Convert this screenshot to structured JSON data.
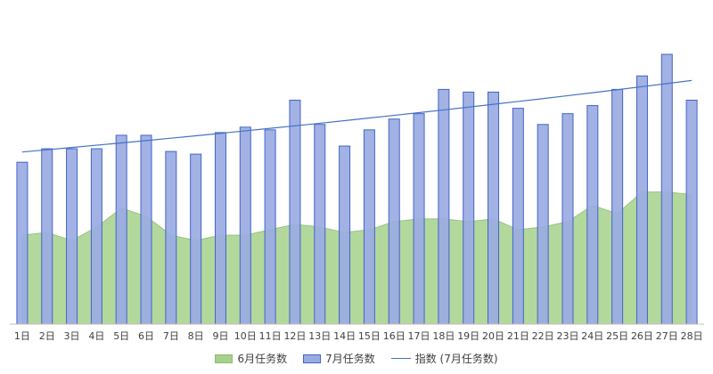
{
  "chart_data": {
    "type": "bar",
    "title": "",
    "xlabel": "",
    "ylabel": "",
    "ylim": [
      0,
      100
    ],
    "grid": false,
    "legend_position": "bottom",
    "categories": [
      "1日",
      "2日",
      "3日",
      "4日",
      "5日",
      "6日",
      "7日",
      "8日",
      "9日",
      "10日",
      "11日",
      "12日",
      "13日",
      "14日",
      "15日",
      "16日",
      "17日",
      "18日",
      "19日",
      "20日",
      "21日",
      "22日",
      "23日",
      "24日",
      "25日",
      "26日",
      "27日",
      "28日"
    ],
    "series": [
      {
        "name": "6月任务数",
        "kind": "area",
        "color": "#a6d18b",
        "values": [
          33,
          34,
          31,
          36,
          43,
          40,
          33,
          31,
          33,
          33,
          35,
          37,
          36,
          34,
          35,
          38,
          39,
          39,
          38,
          39,
          35,
          36,
          38,
          44,
          41,
          49,
          49,
          48
        ]
      },
      {
        "name": "7月任务数",
        "kind": "bar",
        "color": "#9aabe3",
        "border_color": "#4565c4",
        "values": [
          60,
          65,
          65,
          65,
          70,
          70,
          64,
          63,
          71,
          73,
          72,
          83,
          74,
          66,
          72,
          76,
          78,
          87,
          86,
          86,
          80,
          74,
          78,
          81,
          87,
          92,
          100,
          83
        ]
      }
    ],
    "trendline": {
      "name": "指数 (7月任务数)",
      "type": "exponential",
      "of_series": "7月任务数",
      "color": "#4472c4",
      "start_value": 63.8,
      "end_value": 90.3
    }
  }
}
